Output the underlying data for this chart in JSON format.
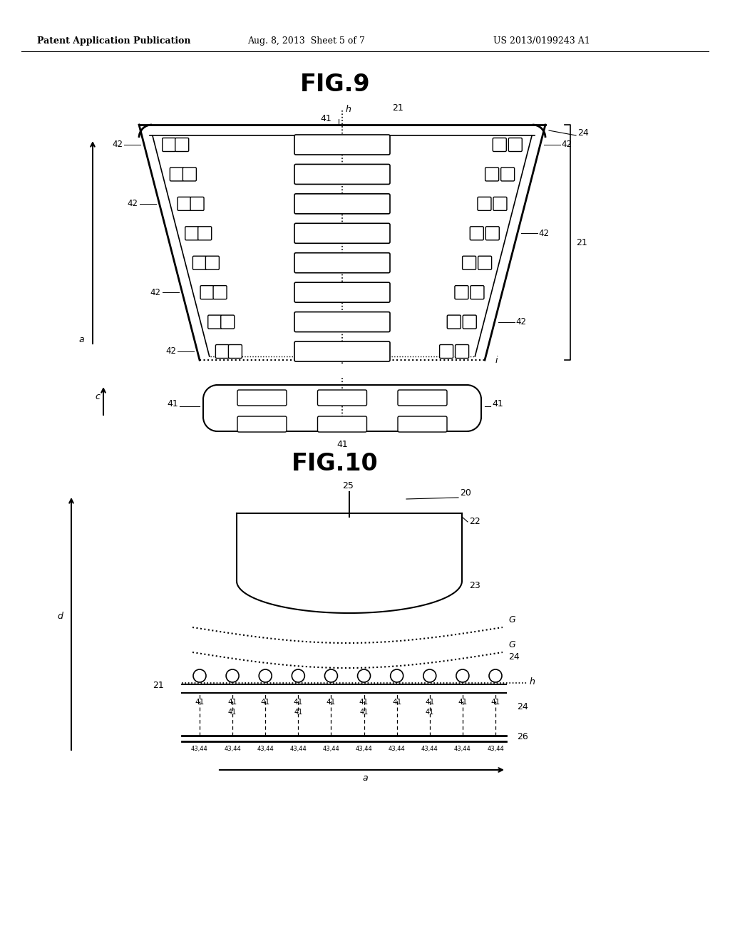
{
  "bg_color": "#ffffff",
  "header_text": "Patent Application Publication",
  "header_date": "Aug. 8, 2013  Sheet 5 of 7",
  "header_patent": "US 2013/0199243 A1",
  "fig9_title": "FIG.9",
  "fig10_title": "FIG.10"
}
